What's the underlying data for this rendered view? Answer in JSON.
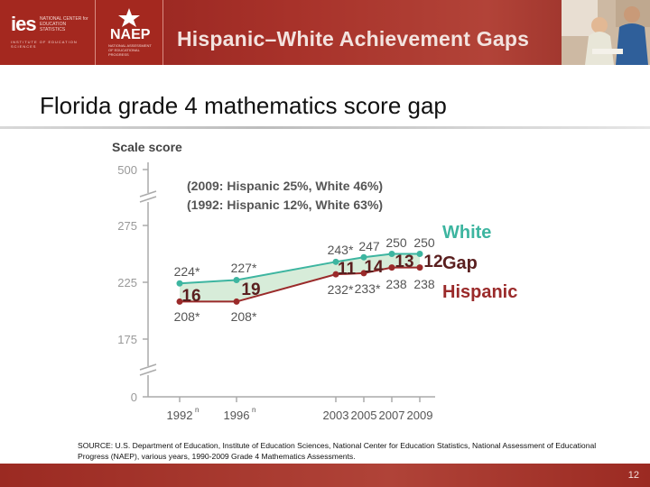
{
  "header": {
    "ies_logo": "ies",
    "ies_logo_sub": "NATIONAL CENTER for EDUCATION STATISTICS",
    "ies_logo_line": "INSTITUTE OF EDUCATION SCIENCES",
    "naep_logo": "NAEP",
    "naep_logo_sub": "NATIONAL ASSESSMENT OF EDUCATIONAL PROGRESS",
    "banner_title": "Hispanic–White Achievement Gaps",
    "icons": [
      "ies-logo",
      "naep-star-icon",
      "students-photo"
    ]
  },
  "slide_title": "Florida grade 4 mathematics score gap",
  "chart_data": {
    "type": "line",
    "ylabel": "Scale score",
    "y_ticks": [
      "500",
      "275",
      "225",
      "175",
      "0"
    ],
    "ylim": [
      175,
      275
    ],
    "grid": false,
    "axis_breaks": true,
    "x_ticks": [
      "1992",
      "1996",
      "2003",
      "2005",
      "2007",
      "2009"
    ],
    "x_tick_superscripts": [
      "n",
      "n",
      "",
      "",
      "",
      ""
    ],
    "x": [
      1992,
      1996,
      2003,
      2005,
      2007,
      2009
    ],
    "callout_lines": [
      "(2009: Hispanic 25%, White 46%)",
      "(1992: Hispanic 12%, White 63%)"
    ],
    "series": [
      {
        "name": "White",
        "values": [
          224,
          227,
          243,
          247,
          250,
          250
        ],
        "labels": [
          "224*",
          "227*",
          "243*",
          "247",
          "250",
          "250"
        ],
        "color": "#3db5a0"
      },
      {
        "name": "Hispanic",
        "values": [
          208,
          208,
          232,
          233,
          238,
          238
        ],
        "labels": [
          "208*",
          "208*",
          "232*",
          "233*",
          "238",
          "238"
        ],
        "color": "#9a2a2a"
      }
    ],
    "gap": {
      "name": "Gap",
      "values": [
        16,
        19,
        11,
        14,
        13,
        12
      ],
      "fill": "#d7ecd9"
    }
  },
  "source_text": "SOURCE: U.S. Department of Education, Institute of Education Sciences, National Center for Education Statistics, National Assessment of Educational Progress (NAEP), various years, 1990-2009 Grade 4 Mathematics Assessments.",
  "footer": {
    "page_number": "12"
  }
}
